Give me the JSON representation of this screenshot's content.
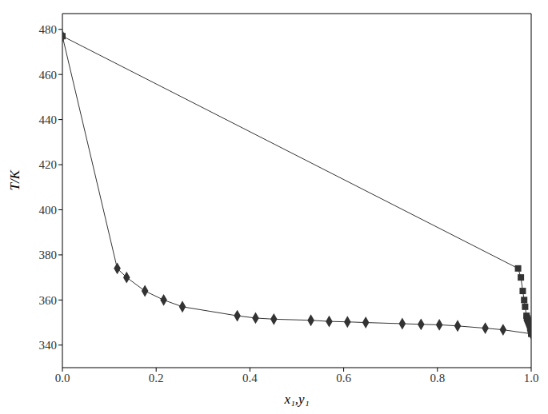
{
  "chart_data": {
    "type": "line",
    "xlabel": "x₁,y₁",
    "ylabel": "T/K",
    "xlim": [
      0,
      1
    ],
    "xticks": [
      {
        "value": 0,
        "label": "0.0"
      },
      {
        "value": 0.2,
        "label": "0.2"
      },
      {
        "value": 0.4,
        "label": "0.4"
      },
      {
        "value": 0.6,
        "label": "0.6"
      },
      {
        "value": 0.8,
        "label": "0.8"
      },
      {
        "value": 1,
        "label": "1.0"
      }
    ],
    "ylim": [
      330,
      487
    ],
    "yticks": [
      340,
      360,
      380,
      400,
      420,
      440,
      460,
      480
    ],
    "series": [
      {
        "color": "#333333",
        "marker": "diamond",
        "line_style": "solid",
        "x": [
          0,
          0.117,
          0.137,
          0.176,
          0.216,
          0.256,
          0.373,
          0.412,
          0.451,
          0.53,
          0.569,
          0.608,
          0.647,
          0.725,
          0.765,
          0.804,
          0.843,
          0.902,
          0.94,
          1.0
        ],
        "values": [
          477,
          374,
          370,
          364,
          360,
          357,
          353,
          352,
          351.5,
          351,
          350.5,
          350.3,
          350,
          349.5,
          349.2,
          349,
          348.5,
          347.5,
          346.8,
          345
        ]
      },
      {
        "color": "#333333",
        "marker": "square",
        "line_style": "solid",
        "x": [
          0,
          0.972,
          0.978,
          0.982,
          0.985,
          0.987,
          0.99,
          0.991,
          0.992,
          0.993,
          0.994,
          0.995,
          0.995,
          0.996,
          0.997,
          0.997,
          0.998,
          0.998,
          0.999,
          1.0
        ],
        "values": [
          477,
          374,
          370,
          364,
          360,
          357,
          353,
          352,
          351.5,
          351,
          350.5,
          350.3,
          350,
          349.5,
          349.2,
          349,
          348.5,
          347.5,
          346.8,
          345
        ]
      }
    ]
  }
}
